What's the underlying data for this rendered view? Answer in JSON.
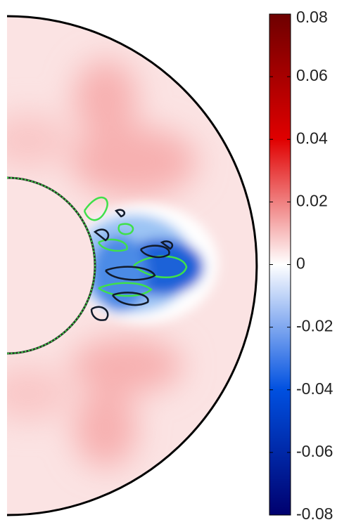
{
  "chart_data": {
    "type": "field",
    "colormap": [
      "#6e0000",
      "#e00000",
      "#ffffff",
      "#0050e0",
      "#00006e"
    ],
    "zlim": [
      -0.08,
      0.08
    ],
    "zticks": [
      -0.08,
      -0.06,
      -0.04,
      -0.02,
      0,
      0.02,
      0.04,
      0.06,
      0.08
    ]
  }
}
